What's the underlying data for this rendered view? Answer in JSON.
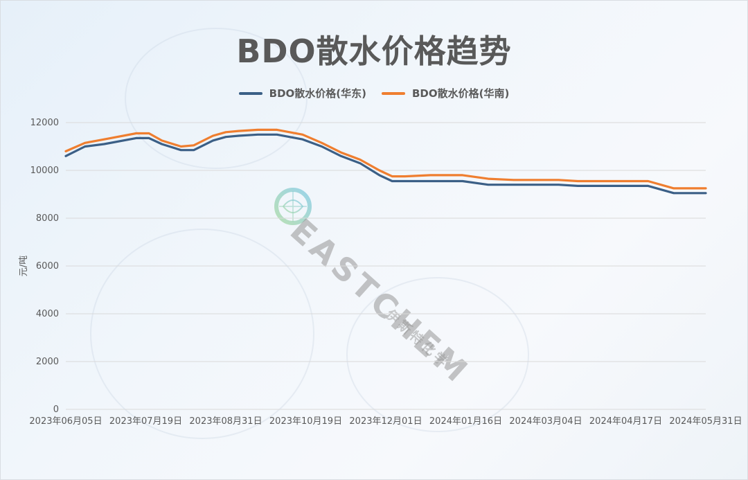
{
  "title": "BDO散水价格趋势",
  "legend": [
    {
      "label": "BDO散水价格(华东)",
      "color": "#3b5f86"
    },
    {
      "label": "BDO散水价格(华南)",
      "color": "#ef7e2f"
    }
  ],
  "y_axis": {
    "title": "元/吨",
    "ticks": [
      "0",
      "2000",
      "4000",
      "6000",
      "8000",
      "10000",
      "12000"
    ]
  },
  "x_axis": {
    "ticks": [
      "2023年06月05日",
      "2023年07月19日",
      "2023年08月31日",
      "2023年10月19日",
      "2023年12月01日",
      "2024年01月16日",
      "2024年03月04日",
      "2024年04月17日",
      "2024年05月31日"
    ]
  },
  "watermark": {
    "text": "EASTCHEM",
    "subtext": "伊斯特化学"
  },
  "chart_data": {
    "type": "line",
    "title": "BDO散水价格趋势",
    "xlabel": "",
    "ylabel": "元/吨",
    "ylim": [
      0,
      12000
    ],
    "grid": true,
    "legend_position": "top",
    "x_ticks": [
      "2023年06月05日",
      "2023年07月19日",
      "2023年08月31日",
      "2023年10月19日",
      "2023年12月01日",
      "2024年01月16日",
      "2024年03月04日",
      "2024年04月17日",
      "2024年05月31日"
    ],
    "x": [
      0,
      0.03,
      0.06,
      0.11,
      0.13,
      0.15,
      0.18,
      0.2,
      0.23,
      0.25,
      0.27,
      0.3,
      0.33,
      0.37,
      0.4,
      0.43,
      0.46,
      0.49,
      0.51,
      0.53,
      0.57,
      0.62,
      0.66,
      0.7,
      0.73,
      0.77,
      0.8,
      0.82,
      0.85,
      0.88,
      0.91,
      0.95,
      1.0
    ],
    "series": [
      {
        "name": "BDO散水价格(华东)",
        "color": "#3b5f86",
        "values": [
          10600,
          11000,
          11100,
          11350,
          11350,
          11100,
          10850,
          10850,
          11250,
          11400,
          11450,
          11500,
          11500,
          11300,
          11000,
          10600,
          10300,
          9800,
          9550,
          9550,
          9550,
          9550,
          9400,
          9400,
          9400,
          9400,
          9350,
          9350,
          9350,
          9350,
          9350,
          9050,
          9050
        ]
      },
      {
        "name": "BDO散水价格(华南)",
        "color": "#ef7e2f",
        "values": [
          10800,
          11150,
          11300,
          11550,
          11550,
          11250,
          11000,
          11050,
          11450,
          11600,
          11650,
          11700,
          11700,
          11500,
          11150,
          10750,
          10450,
          10000,
          9750,
          9750,
          9800,
          9800,
          9650,
          9600,
          9600,
          9600,
          9550,
          9550,
          9550,
          9550,
          9550,
          9250,
          9250
        ]
      }
    ]
  }
}
